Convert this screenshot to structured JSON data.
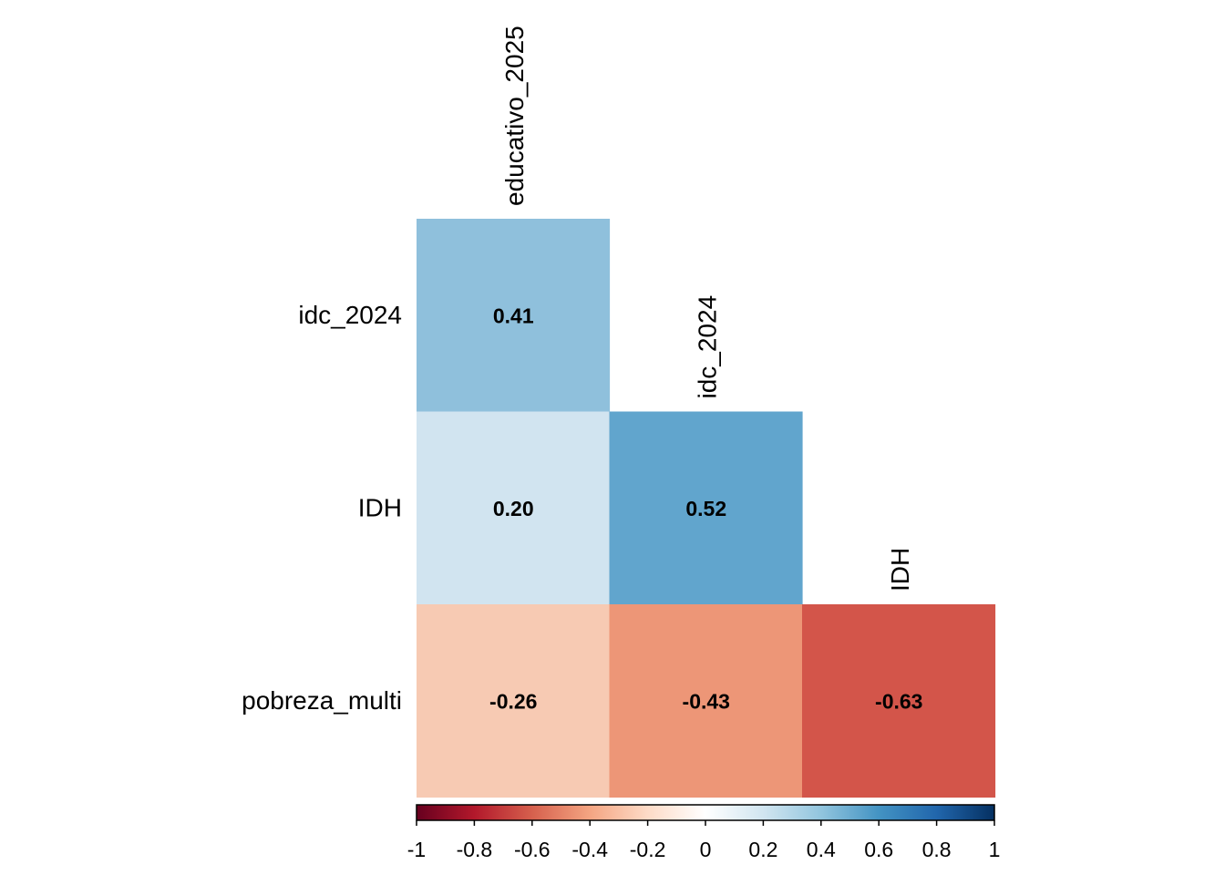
{
  "chart_data": {
    "type": "heatmap",
    "title": "",
    "row_labels": [
      "idc_2024",
      "IDH",
      "pobreza_multi"
    ],
    "column_labels": [
      "educativo_2025",
      "idc_2024",
      "IDH"
    ],
    "layout": "lower-triangle",
    "cells": [
      {
        "row": "idc_2024",
        "col": "educativo_2025",
        "value": 0.41,
        "label": "0.41",
        "color": "#8fc0dc"
      },
      {
        "row": "IDH",
        "col": "educativo_2025",
        "value": 0.2,
        "label": "0.20",
        "color": "#d1e4f0"
      },
      {
        "row": "IDH",
        "col": "idc_2024",
        "value": 0.52,
        "label": "0.52",
        "color": "#61a5cd"
      },
      {
        "row": "pobreza_multi",
        "col": "educativo_2025",
        "value": -0.26,
        "label": "-0.26",
        "color": "#f7cab3"
      },
      {
        "row": "pobreza_multi",
        "col": "idc_2024",
        "value": -0.43,
        "label": "-0.43",
        "color": "#ed9677"
      },
      {
        "row": "pobreza_multi",
        "col": "IDH",
        "value": -0.63,
        "label": "-0.63",
        "color": "#d3554a"
      }
    ],
    "colorbar": {
      "range": [
        -1,
        1
      ],
      "ticks": [
        -1,
        -0.8,
        -0.6,
        -0.4,
        -0.2,
        0,
        0.2,
        0.4,
        0.6,
        0.8,
        1
      ],
      "tick_labels": [
        "-1",
        "-0.8",
        "-0.6",
        "-0.4",
        "-0.2",
        "0",
        "0.2",
        "0.4",
        "0.6",
        "0.8",
        "1"
      ],
      "placement": "bottom",
      "stops": [
        "#67001f",
        "#b2182b",
        "#d6604d",
        "#f4a582",
        "#fddbc7",
        "#ffffff",
        "#d1e5f0",
        "#92c5de",
        "#4393c3",
        "#2166ac",
        "#053061"
      ]
    }
  }
}
